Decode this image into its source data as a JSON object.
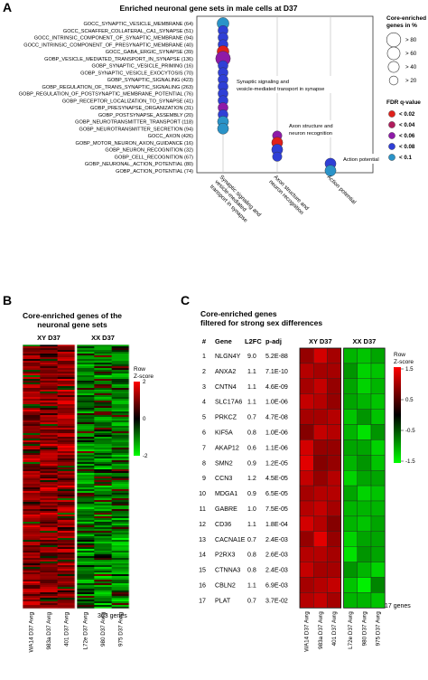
{
  "panels": {
    "a": {
      "letter": "A",
      "title": "Enriched neuronal gene sets in male cells at D37"
    },
    "b": {
      "letter": "B",
      "title_line1": "Core-enriched genes of the",
      "title_line2": "neuronal gene sets",
      "count_label": "363 genes"
    },
    "c": {
      "letter": "C",
      "title_line1": "Core-enriched genes",
      "title_line2": "filtered for strong sex differences",
      "count_label": "17 genes"
    }
  },
  "legend_size": {
    "title_line1": "Core-enriched",
    "title_line2": "genes in %",
    "items": [
      {
        "label": "> 80",
        "value": 80
      },
      {
        "label": "> 60",
        "value": 60
      },
      {
        "label": "> 40",
        "value": 40
      },
      {
        "label": "> 20",
        "value": 20
      }
    ]
  },
  "legend_fdr": {
    "title": "FDR q-value",
    "items": [
      {
        "label": "< 0.02",
        "color": "#e0201b"
      },
      {
        "label": "< 0.04",
        "color": "#b01c5c"
      },
      {
        "label": "< 0.06",
        "color": "#8e1aa8"
      },
      {
        "label": "< 0.08",
        "color": "#2f3fd6"
      },
      {
        "label": "< 0.1",
        "color": "#2a93c8"
      }
    ]
  },
  "heatmap_legend": {
    "title_line1": "Row",
    "title_line2": "Z-score"
  },
  "chart_data": [
    {
      "type": "scatter",
      "id": "dotplot",
      "categories_x": [
        "Synaptic signaling and vesicle-mediated transport in synapse",
        "Axon structure and neuron recognition",
        "Action potential"
      ],
      "group_annotations": [
        {
          "group": 0,
          "text_line1": "Synaptic signaling and",
          "text_line2": "vesicle-mediated transport in synapse"
        },
        {
          "group": 1,
          "text_line1": "Axon structure and",
          "text_line2": "neuron recognition"
        },
        {
          "group": 2,
          "text_line1": "Action potential",
          "text_line2": ""
        }
      ],
      "rows": [
        {
          "label": "GOCC_SYNAPTIC_VESICLE_MEMBRANE (64)",
          "group": 0,
          "core_pct": 50,
          "fdr_bin": 4
        },
        {
          "label": "GOCC_SCHAFFER_COLLATERAL_CA1_SYNAPSE (51)",
          "group": 0,
          "core_pct": 30,
          "fdr_bin": 3
        },
        {
          "label": "GOCC_INTRINSIC_COMPONENT_OF_SYNAPTIC_MEMBRANE (94)",
          "group": 0,
          "core_pct": 30,
          "fdr_bin": 3
        },
        {
          "label": "GOCC_INTRINSIC_COMPONENT_OF_PRESYNAPTIC_MEMBRANE (40)",
          "group": 0,
          "core_pct": 30,
          "fdr_bin": 3
        },
        {
          "label": "GOCC_GABA_ERGIC_SYNAPSE (39)",
          "group": 0,
          "core_pct": 50,
          "fdr_bin": 0
        },
        {
          "label": "GOBP_VESICLE_MEDIATED_TRANSPORT_IN_SYNAPSE (136)",
          "group": 0,
          "core_pct": 90,
          "fdr_bin": 2
        },
        {
          "label": "GOBP_SYNAPTIC_VESICLE_PRIMING (16)",
          "group": 0,
          "core_pct": 30,
          "fdr_bin": 3
        },
        {
          "label": "GOBP_SYNAPTIC_VESICLE_EXOCYTOSIS (70)",
          "group": 0,
          "core_pct": 30,
          "fdr_bin": 3
        },
        {
          "label": "GOBP_SYNAPTIC_SIGNALING (423)",
          "group": 0,
          "core_pct": 30,
          "fdr_bin": 3
        },
        {
          "label": "GOBP_REGULATION_OF_TRANS_SYNAPTIC_SIGNALING (263)",
          "group": 0,
          "core_pct": 30,
          "fdr_bin": 3
        },
        {
          "label": "GOBP_REGULATION_OF_POSTSYNAPTIC_MEMBRANE_POTENTIAL (76)",
          "group": 0,
          "core_pct": 30,
          "fdr_bin": 3
        },
        {
          "label": "GOBP_RECEPTOR_LOCALIZATION_TO_SYNAPSE (41)",
          "group": 0,
          "core_pct": 30,
          "fdr_bin": 3
        },
        {
          "label": "GOBP_PRESYNAPSE_ORGANIZATION (31)",
          "group": 0,
          "core_pct": 30,
          "fdr_bin": 2
        },
        {
          "label": "GOBP_POSTSYNAPSE_ASSEMBLY (20)",
          "group": 0,
          "core_pct": 30,
          "fdr_bin": 3
        },
        {
          "label": "GOBP_NEUROTRANSMITTER_TRANSPORT (118)",
          "group": 0,
          "core_pct": 40,
          "fdr_bin": 4
        },
        {
          "label": "GOBP_NEUROTRANSMITTER_SECRETION (94)",
          "group": 0,
          "core_pct": 40,
          "fdr_bin": 4
        },
        {
          "label": "GOCC_AXON (426)",
          "group": 1,
          "core_pct": 25,
          "fdr_bin": 2
        },
        {
          "label": "GOBP_MOTOR_NEURON_AXON_GUIDANCE (16)",
          "group": 1,
          "core_pct": 40,
          "fdr_bin": 0
        },
        {
          "label": "GOBP_NEURON_RECOGNITION (32)",
          "group": 1,
          "core_pct": 40,
          "fdr_bin": 3
        },
        {
          "label": "GOBP_CELL_RECOGNITION (67)",
          "group": 1,
          "core_pct": 25,
          "fdr_bin": 3
        },
        {
          "label": "GOBP_NEURONAL_ACTION_POTENTIAL (80)",
          "group": 2,
          "core_pct": 40,
          "fdr_bin": 3
        },
        {
          "label": "GOBP_ACTION_POTENTIAL (74)",
          "group": 2,
          "core_pct": 40,
          "fdr_bin": 4
        }
      ]
    },
    {
      "type": "heatmap",
      "id": "heatmap_b",
      "groups": [
        {
          "name": "XY D37",
          "start": 0,
          "count": 3
        },
        {
          "name": "XX D37",
          "start": 3,
          "count": 3
        }
      ],
      "columns": [
        "WA14 D37 Avrg",
        "983a D37 Avrg",
        "401 D37 Avrg",
        "L72e D37 Avrg",
        "980 D37 Avrg",
        "975 D37 Avrg"
      ],
      "row_count": 363,
      "pattern": "XY columns mostly positive (red), XX columns mostly negative (green)"
    },
    {
      "type": "table",
      "id": "gene_table",
      "headers": [
        "#",
        "Gene",
        "L2FC",
        "p-adj"
      ],
      "rows": [
        [
          "1",
          "NLGN4Y",
          "9.0",
          "5.2E-88"
        ],
        [
          "2",
          "ANXA2",
          "1.1",
          "7.1E-10"
        ],
        [
          "3",
          "CNTN4",
          "1.1",
          "4.6E-09"
        ],
        [
          "4",
          "SLC17A6",
          "1.1",
          "1.0E-06"
        ],
        [
          "5",
          "PRKCZ",
          "0.7",
          "4.7E-08"
        ],
        [
          "6",
          "KIF5A",
          "0.8",
          "1.0E-06"
        ],
        [
          "7",
          "AKAP12",
          "0.6",
          "1.1E-06"
        ],
        [
          "8",
          "SMN2",
          "0.9",
          "1.2E-05"
        ],
        [
          "9",
          "CCN3",
          "1.2",
          "4.5E-05"
        ],
        [
          "10",
          "MDGA1",
          "0.9",
          "6.5E-05"
        ],
        [
          "11",
          "GABRE",
          "1.0",
          "7.5E-05"
        ],
        [
          "12",
          "CD36",
          "1.1",
          "1.8E-04"
        ],
        [
          "13",
          "CACNA1E",
          "0.7",
          "2.4E-03"
        ],
        [
          "14",
          "P2RX3",
          "0.8",
          "2.6E-03"
        ],
        [
          "15",
          "CTNNA3",
          "0.8",
          "2.4E-03"
        ],
        [
          "16",
          "CBLN2",
          "1.1",
          "6.9E-03"
        ],
        [
          "17",
          "PLAT",
          "0.7",
          "3.7E-02"
        ]
      ]
    },
    {
      "type": "heatmap",
      "id": "heatmap_c",
      "groups": [
        {
          "name": "XY D37",
          "start": 0,
          "count": 3
        },
        {
          "name": "XX D37",
          "start": 3,
          "count": 3
        }
      ],
      "columns": [
        "WA14 D37 Avrg",
        "983a D37 Avrg",
        "401 D37 Avrg",
        "L72e D37 Avrg",
        "980 D37 Avrg",
        "975 D37 Avrg"
      ],
      "color_scale": {
        "min": -1.5,
        "max": 1.5,
        "ticks": [
          "1.5",
          "1",
          "0.5",
          "0",
          "-0.5",
          "-1",
          "-1.5"
        ]
      },
      "values": [
        [
          0.8,
          1.2,
          0.9,
          -1.0,
          -1.1,
          -0.9
        ],
        [
          1.0,
          0.9,
          0.9,
          -0.8,
          -1.2,
          -1.1
        ],
        [
          0.9,
          1.1,
          0.8,
          -0.9,
          -1.2,
          -1.0
        ],
        [
          1.1,
          1.0,
          0.8,
          -0.9,
          -1.0,
          -1.1
        ],
        [
          0.9,
          0.9,
          1.0,
          -1.1,
          -0.8,
          -1.1
        ],
        [
          0.7,
          1.1,
          1.0,
          -1.0,
          -1.3,
          -0.8
        ],
        [
          1.2,
          0.8,
          0.8,
          -0.9,
          -0.9,
          -1.2
        ],
        [
          1.3,
          0.7,
          0.8,
          -1.0,
          -0.8,
          -1.1
        ],
        [
          1.1,
          0.8,
          1.0,
          -1.2,
          -0.9,
          -0.9
        ],
        [
          0.9,
          1.0,
          1.0,
          -0.9,
          -1.2,
          -1.1
        ],
        [
          1.0,
          1.1,
          0.9,
          -1.0,
          -1.0,
          -1.0
        ],
        [
          1.2,
          1.0,
          0.7,
          -1.0,
          -1.1,
          -0.9
        ],
        [
          0.8,
          1.3,
          0.8,
          -1.2,
          -0.9,
          -0.9
        ],
        [
          1.0,
          1.0,
          0.9,
          -1.3,
          -0.8,
          -0.9
        ],
        [
          1.1,
          0.9,
          0.9,
          -0.8,
          -1.0,
          -1.2
        ],
        [
          0.9,
          1.0,
          1.1,
          -1.1,
          -1.4,
          -0.7
        ],
        [
          1.0,
          1.1,
          0.9,
          -1.0,
          -1.0,
          -1.1
        ]
      ]
    }
  ]
}
